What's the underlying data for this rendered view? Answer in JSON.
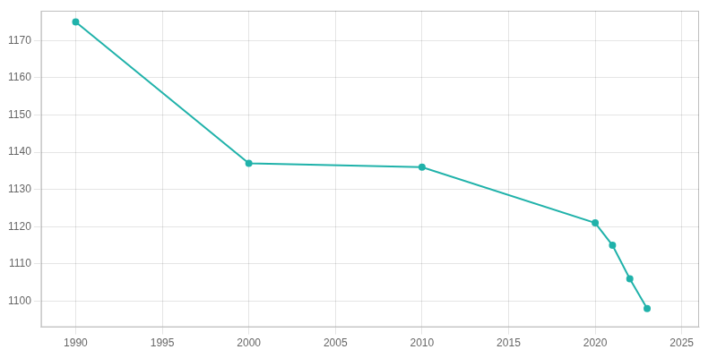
{
  "chart_data": {
    "type": "line",
    "x": [
      1990,
      2000,
      2010,
      2020,
      2021,
      2022,
      2023
    ],
    "values": [
      1175,
      1137,
      1136,
      1121,
      1115,
      1106,
      1098
    ],
    "color": "#20B2AA",
    "marker": "circle",
    "xlim": [
      1988,
      2026
    ],
    "xticks": [
      1990,
      1995,
      2000,
      2005,
      2010,
      2015,
      2020,
      2025
    ],
    "ylim": [
      1093,
      1178
    ],
    "yticks": [
      1100,
      1110,
      1120,
      1130,
      1140,
      1150,
      1160,
      1170
    ],
    "grid": true
  }
}
